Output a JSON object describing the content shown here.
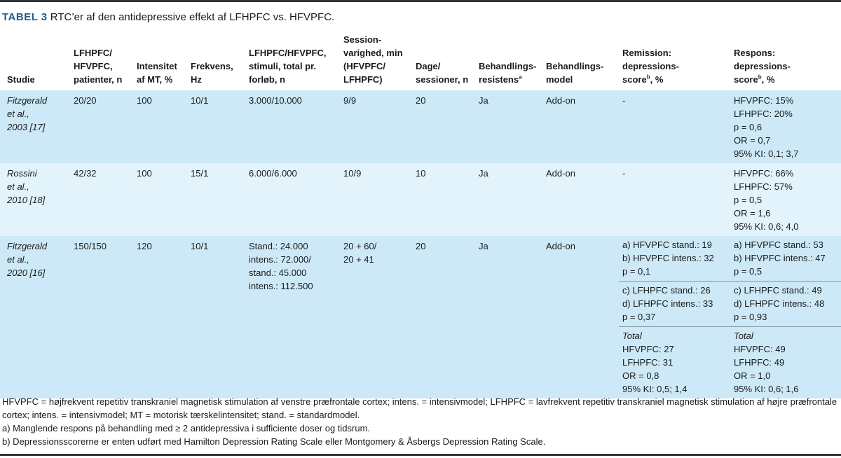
{
  "title": {
    "label": "TABEL 3",
    "text": "RTC’er af den antidepressive effekt af LFHPFC vs. HFVPFC."
  },
  "headers": [
    [
      "Studie"
    ],
    [
      "LFHPFC/",
      "HFVPFC,",
      "patienter, n"
    ],
    [
      "Intensitet",
      "af MT, %"
    ],
    [
      "Frekvens,",
      "Hz"
    ],
    [
      "LFHPFC/HFVPFC,",
      "stimuli, total pr.",
      "forløb, n"
    ],
    [
      "Session-",
      "varighed, min",
      "(HFVPFC/",
      "LFHPFC)"
    ],
    [
      "Dage/",
      "sessioner, n"
    ],
    [
      "Behandlings-",
      "resistens"
    ],
    [
      "Behandlings-",
      "model"
    ],
    [
      "Remission:",
      "depressions-",
      "score",
      ", %"
    ],
    [
      "Respons:",
      "depressions-",
      "score",
      ", %"
    ]
  ],
  "header_sups": {
    "resistens": "a",
    "remission": "b",
    "respons": "b"
  },
  "rows": [
    {
      "study": [
        "Fitzgerald",
        "et al.,",
        "2003 [17]"
      ],
      "patients": "20/20",
      "intensity": "100",
      "freq": "10/1",
      "stimuli": [
        "3.000/10.000"
      ],
      "session": [
        "9/9"
      ],
      "days": "20",
      "resistance": "Ja",
      "model": "Add-on",
      "remission": [
        "-"
      ],
      "response": [
        "HFVPFC: 15%",
        "LFHPFC: 20%",
        "p = 0,6",
        "OR = 0,7",
        "95% KI: 0,1; 3,7"
      ]
    },
    {
      "study": [
        "Rossini",
        "et al.,",
        "2010 [18]"
      ],
      "patients": "42/32",
      "intensity": "100",
      "freq": "15/1",
      "stimuli": [
        "6.000/6.000"
      ],
      "session": [
        "10/9"
      ],
      "days": "10",
      "resistance": "Ja",
      "model": "Add-on",
      "remission": [
        "-"
      ],
      "response": [
        "HFVPFC: 66%",
        "LFHPFC: 57%",
        "p = 0,5",
        "OR = 1,6",
        "95% KI: 0,6; 4,0"
      ]
    },
    {
      "study": [
        "Fitzgerald",
        "et al.,",
        "2020 [16]"
      ],
      "patients": "150/150",
      "intensity": "120",
      "freq": "10/1",
      "stimuli": [
        "Stand.: 24.000",
        "intens.: 72.000/",
        "stand.: 45.000",
        "intens.: 112.500"
      ],
      "session": [
        "20 + 60/",
        "20 + 41"
      ],
      "days": "20",
      "resistance": "Ja",
      "model": "Add-on",
      "remission_sub": [
        [
          "a) HFVPFC stand.: 19",
          "b) HFVPFC intens.: 32",
          "p = 0,1"
        ],
        [
          "c) LFHPFC stand.: 26",
          "d) LFHPFC intens.: 33",
          "p = 0,37"
        ],
        [
          "Total",
          "HFVPFC: 27",
          "LFHPFC: 31",
          "OR = 0,8",
          "95% KI: 0,5; 1,4"
        ]
      ],
      "response_sub": [
        [
          "a) HFVPFC stand.: 53",
          "b) HFVPFC intens.: 47",
          "p = 0,5"
        ],
        [
          "c) LFHPFC stand.: 49",
          "d) LFHPFC intens.: 48",
          "p = 0,93"
        ],
        [
          "Total",
          "HFVPFC: 49",
          "LFHPFC: 49",
          "OR = 1,0",
          "95% KI: 0,6; 1,6"
        ]
      ]
    }
  ],
  "colors": {
    "title_label": "#1f5a8c",
    "row_dark": "#cde9f7",
    "row_light": "#e3f3fb"
  },
  "footnotes": [
    "HFVPFC = højfrekvent repetitiv transkraniel magnetisk stimulation af venstre præfrontale cortex; intens. = intensivmodel; LFHPFC = lavfrekvent repetitiv transkraniel magnetisk stimulation af højre præfrontale cortex; intens. = intensivmodel; MT = motorisk tærskelintensitet; stand. = standardmodel.",
    "a) Manglende respons på behandling med ≥ 2 antidepressiva i sufficiente doser og tidsrum.",
    "b) Depressionsscorerne er enten udført med Hamilton Depression Rating Scale eller Montgomery & Åsbergs Depression Rating Scale."
  ]
}
